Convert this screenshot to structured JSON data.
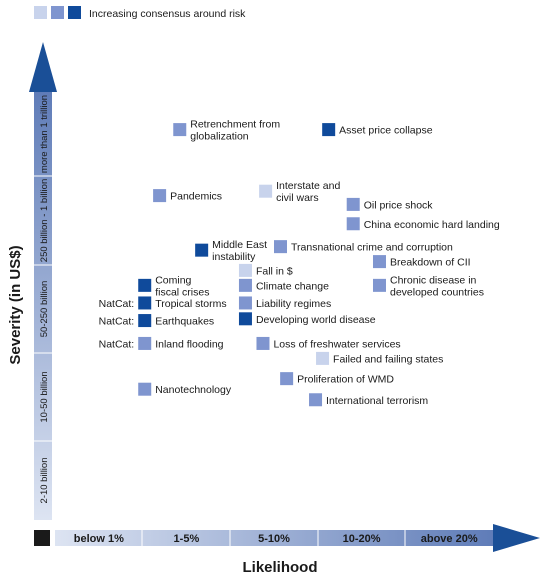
{
  "legend_label": "Increasing consensus around risk",
  "colors": {
    "consensus_levels": [
      "#c8d3ec",
      "#7f95cf",
      "#0f4a9b"
    ],
    "axis_arrow": "#1a4f97",
    "axis_band_light": "#dde4f2",
    "axis_band_dark": "#5f7cb8",
    "origin_box": "#1a1a1a"
  },
  "chart_data": {
    "type": "scatter",
    "title": "",
    "xlabel": "Likelihood",
    "ylabel": "Severity (in US$)",
    "x_categories": [
      "below 1%",
      "1-5%",
      "5-10%",
      "10-20%",
      "above 20%"
    ],
    "y_categories": [
      "2-10 billion",
      "10-50 billion",
      "50-250 billion",
      "250 billion - 1 billion",
      "more than 1 trillion"
    ],
    "legend": {
      "label": "Increasing consensus around risk",
      "levels": [
        1,
        2,
        3
      ],
      "placement": "top-left"
    },
    "points": [
      {
        "label": "Retrenchment from globalization",
        "x": 1.35,
        "y": 4.55,
        "consensus": 2
      },
      {
        "label": "Asset price collapse",
        "x": 3.05,
        "y": 4.55,
        "consensus": 3
      },
      {
        "label": "Pandemics",
        "x": 1.12,
        "y": 3.8,
        "consensus": 2
      },
      {
        "label": "Interstate and civil wars",
        "x": 2.33,
        "y": 3.85,
        "consensus": 1
      },
      {
        "label": "Oil price shock",
        "x": 3.33,
        "y": 3.7,
        "consensus": 2
      },
      {
        "label": "China economic hard landing",
        "x": 3.33,
        "y": 3.48,
        "consensus": 2
      },
      {
        "label": "Middle East instability",
        "x": 1.6,
        "y": 3.18,
        "consensus": 3
      },
      {
        "label": "Transnational crime and corruption",
        "x": 2.5,
        "y": 3.22,
        "consensus": 2
      },
      {
        "label": "Breakdown of CII",
        "x": 3.63,
        "y": 3.05,
        "consensus": 2
      },
      {
        "label": "Fall in $",
        "x": 2.1,
        "y": 2.95,
        "consensus": 1
      },
      {
        "label": "Coming fiscal crises",
        "x": 0.95,
        "y": 2.78,
        "consensus": 3
      },
      {
        "label": "Climate change",
        "x": 2.1,
        "y": 2.78,
        "consensus": 2
      },
      {
        "label": "Chronic disease in developed countries",
        "x": 3.63,
        "y": 2.78,
        "consensus": 2
      },
      {
        "label": "NatCat: Tropical storms",
        "x": 0.95,
        "y": 2.58,
        "consensus": 3
      },
      {
        "label": "Liability regimes",
        "x": 2.1,
        "y": 2.58,
        "consensus": 2
      },
      {
        "label": "NatCat: Earthquakes",
        "x": 0.95,
        "y": 2.38,
        "consensus": 3
      },
      {
        "label": "Developing world disease",
        "x": 2.1,
        "y": 2.4,
        "consensus": 3
      },
      {
        "label": "NatCat: Inland flooding",
        "x": 0.95,
        "y": 2.12,
        "consensus": 2
      },
      {
        "label": "Loss of freshwater services",
        "x": 2.3,
        "y": 2.12,
        "consensus": 2
      },
      {
        "label": "Failed and failing states",
        "x": 2.98,
        "y": 1.95,
        "consensus": 1
      },
      {
        "label": "Proliferation of WMD",
        "x": 2.57,
        "y": 1.72,
        "consensus": 2
      },
      {
        "label": "Nanotechnology",
        "x": 0.95,
        "y": 1.6,
        "consensus": 2
      },
      {
        "label": "International terrorism",
        "x": 2.9,
        "y": 1.48,
        "consensus": 2
      }
    ]
  },
  "markers": [
    {
      "consensus": 2,
      "lines": [
        "Retrenchment from",
        "globalization"
      ],
      "prefix": ""
    },
    {
      "consensus": 3,
      "lines": [
        "Asset price collapse"
      ],
      "prefix": ""
    },
    {
      "consensus": 2,
      "lines": [
        "Pandemics"
      ],
      "prefix": ""
    },
    {
      "consensus": 1,
      "lines": [
        "Interstate and",
        "civil wars"
      ],
      "prefix": ""
    },
    {
      "consensus": 2,
      "lines": [
        "Oil price shock"
      ],
      "prefix": ""
    },
    {
      "consensus": 2,
      "lines": [
        "China economic hard landing"
      ],
      "prefix": ""
    },
    {
      "consensus": 3,
      "lines": [
        "Middle East",
        "instability"
      ],
      "prefix": ""
    },
    {
      "consensus": 2,
      "lines": [
        "Transnational crime and corruption"
      ],
      "prefix": ""
    },
    {
      "consensus": 2,
      "lines": [
        "Breakdown of CII"
      ],
      "prefix": ""
    },
    {
      "consensus": 1,
      "lines": [
        "Fall in $"
      ],
      "prefix": ""
    },
    {
      "consensus": 3,
      "lines": [
        "Coming",
        "fiscal crises"
      ],
      "prefix": ""
    },
    {
      "consensus": 2,
      "lines": [
        "Climate change"
      ],
      "prefix": ""
    },
    {
      "consensus": 2,
      "lines": [
        "Chronic disease in",
        "developed countries"
      ],
      "prefix": ""
    },
    {
      "consensus": 3,
      "lines": [
        "Tropical storms"
      ],
      "prefix": "NatCat:"
    },
    {
      "consensus": 2,
      "lines": [
        "Liability regimes"
      ],
      "prefix": ""
    },
    {
      "consensus": 3,
      "lines": [
        "Earthquakes"
      ],
      "prefix": "NatCat:"
    },
    {
      "consensus": 3,
      "lines": [
        "Developing world disease"
      ],
      "prefix": ""
    },
    {
      "consensus": 2,
      "lines": [
        "Inland flooding"
      ],
      "prefix": "NatCat:"
    },
    {
      "consensus": 2,
      "lines": [
        "Loss of freshwater services"
      ],
      "prefix": ""
    },
    {
      "consensus": 1,
      "lines": [
        "Failed and failing states"
      ],
      "prefix": ""
    },
    {
      "consensus": 2,
      "lines": [
        "Proliferation of WMD"
      ],
      "prefix": ""
    },
    {
      "consensus": 2,
      "lines": [
        "Nanotechnology"
      ],
      "prefix": ""
    },
    {
      "consensus": 2,
      "lines": [
        "International terrorism"
      ],
      "prefix": ""
    }
  ]
}
